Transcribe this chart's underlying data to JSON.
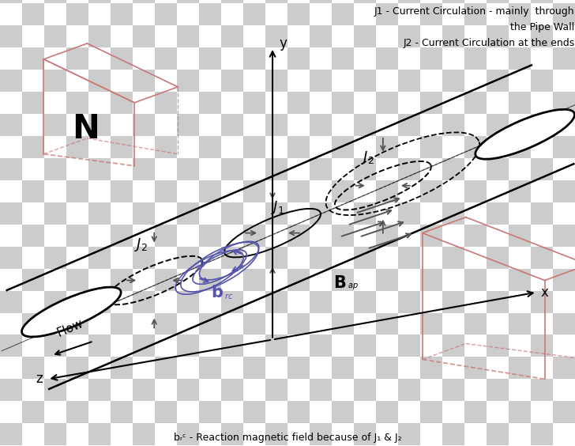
{
  "bg_checker_color1": "#cccccc",
  "bg_checker_color2": "#ffffff",
  "title_line1": "J1 - Current Circulation - mainly  through",
  "title_line2": "the Pipe Wall",
  "title_line3": "J2 - Current Circulation at the ends",
  "bottom_label": "bᵣᶜ - Reaction magnetic field because of J₁ & J₂",
  "box_color": "#c87878",
  "blue_color": "#5555aa",
  "gray_color": "#555555"
}
